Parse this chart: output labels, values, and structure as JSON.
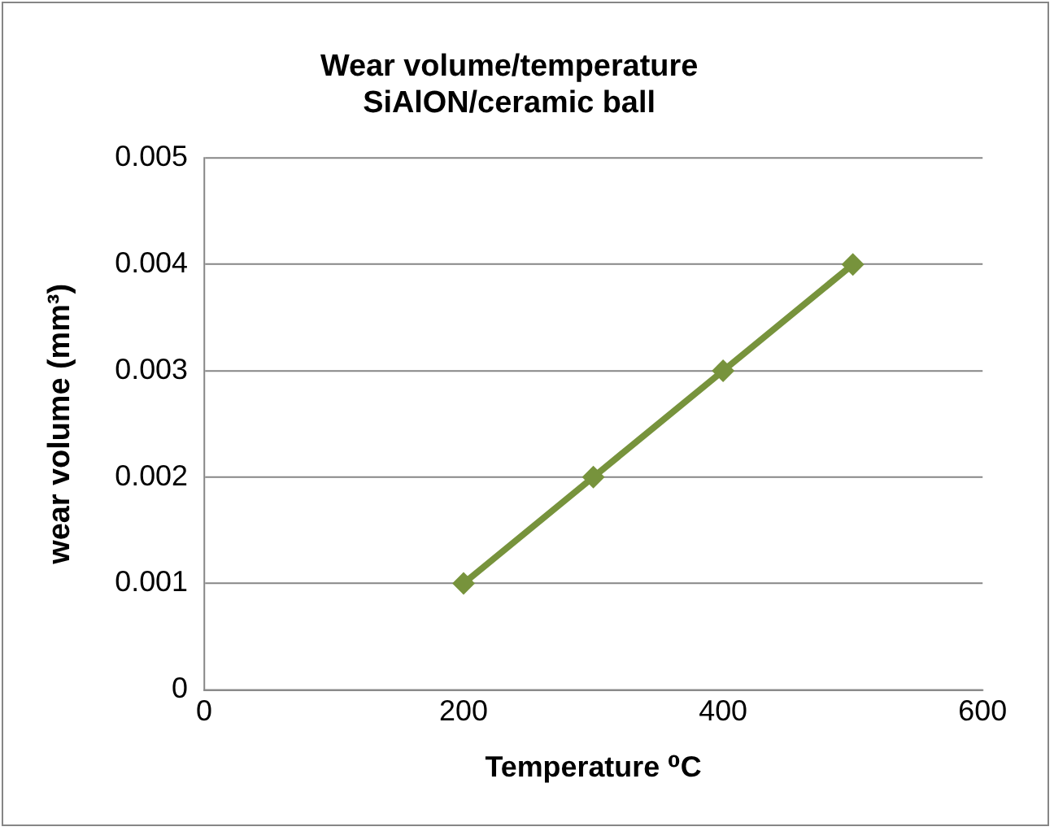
{
  "chart_data": {
    "type": "line",
    "title": "Wear volume/temperature\nSiAlON/ceramic ball",
    "xlabel": "Temperature ⁰C",
    "ylabel": "wear volume (mm³)",
    "x": [
      200,
      300,
      400,
      500
    ],
    "series": [
      {
        "color": "#77933c",
        "values": [
          0.001,
          0.002,
          0.003,
          0.004
        ]
      }
    ],
    "xlim": [
      0,
      600
    ],
    "xticks": [
      0,
      200,
      400,
      600
    ],
    "ylim": [
      0,
      0.005
    ],
    "yticks": [
      0,
      0.001,
      0.002,
      0.003,
      0.004,
      0.005
    ],
    "grid": "y",
    "legend": false,
    "marker": "diamond",
    "line_style": "solid"
  }
}
